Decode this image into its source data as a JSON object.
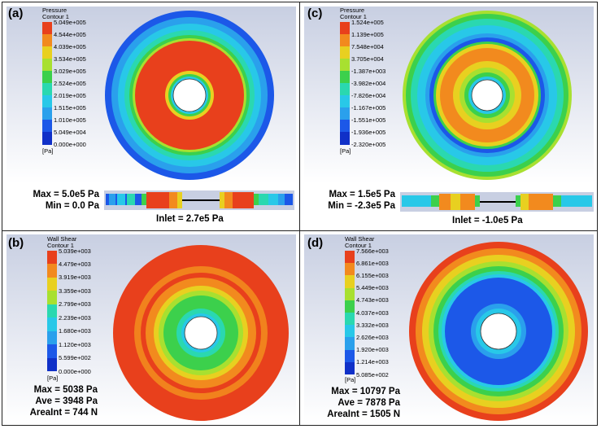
{
  "panels": [
    {
      "letter": "(a)",
      "legend_title": "Pressure",
      "legend_subtitle": "Contour 1",
      "legend_values": [
        "5.049e+005",
        "4.544e+005",
        "4.039e+005",
        "3.534e+005",
        "3.029e+005",
        "2.524e+005",
        "2.019e+005",
        "1.515e+005",
        "1.010e+005",
        "5.049e+004",
        "0.000e+000"
      ],
      "legend_unit": "[Pa]",
      "stats": [
        "Max = 5.0e5 Pa",
        "Min = 0.0 Pa"
      ],
      "inlet": "Inlet = 2.7e5 Pa"
    },
    {
      "letter": "(c)",
      "legend_title": "Pressure",
      "legend_subtitle": "Contour 1",
      "legend_values": [
        "1.524e+005",
        "1.139e+005",
        "7.548e+004",
        "3.705e+004",
        "-1.387e+003",
        "-3.982e+004",
        "-7.826e+004",
        "-1.167e+005",
        "-1.551e+005",
        "-1.936e+005",
        "-2.320e+005"
      ],
      "legend_unit": "[Pa]",
      "stats": [
        "Max = 1.5e5 Pa",
        "Min = -2.3e5 Pa"
      ],
      "inlet": "Inlet = -1.0e5 Pa"
    },
    {
      "letter": "(b)",
      "legend_title": "Wall Shear",
      "legend_subtitle": "Contour 1",
      "legend_values": [
        "5.039e+003",
        "4.479e+003",
        "3.919e+003",
        "3.359e+003",
        "2.799e+003",
        "2.239e+003",
        "1.680e+003",
        "1.120e+003",
        "5.599e+002",
        "0.000e+000"
      ],
      "legend_unit": "[Pa]",
      "stats": [
        "Max = 5038 Pa",
        "Ave = 3948 Pa",
        "AreaInt = 744 N"
      ]
    },
    {
      "letter": "(d)",
      "legend_title": "Wall Shear",
      "legend_subtitle": "Contour 1",
      "legend_values": [
        "7.566e+003",
        "6.861e+003",
        "6.155e+003",
        "5.449e+003",
        "4.743e+003",
        "4.037e+003",
        "3.332e+003",
        "2.626e+003",
        "1.920e+003",
        "1.214e+003",
        "5.085e+002"
      ],
      "legend_unit": "[Pa]",
      "stats": [
        "Max = 10797 Pa",
        "Ave = 7878 Pa",
        "AreaInt = 1505 N"
      ]
    }
  ],
  "colors": {
    "red": "#e8401c",
    "orange": "#f28a1e",
    "yellow": "#e8d020",
    "lime": "#a8e030",
    "green": "#3cd04c",
    "teal": "#2ad8b0",
    "cyan": "#28c8e8",
    "sky": "#2aa0ec",
    "blue": "#1c58e8",
    "navy": "#1030c8"
  }
}
